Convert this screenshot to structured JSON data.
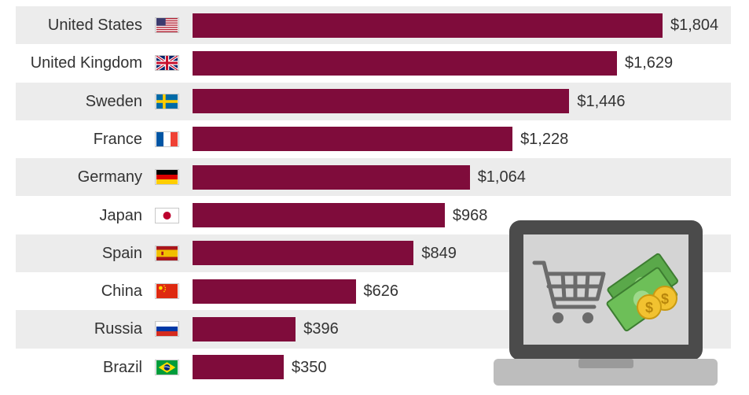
{
  "chart_data": {
    "type": "bar",
    "orientation": "horizontal",
    "categories": [
      "United States",
      "United Kingdom",
      "Sweden",
      "France",
      "Germany",
      "Japan",
      "Spain",
      "China",
      "Russia",
      "Brazil"
    ],
    "values": [
      1804,
      1629,
      1446,
      1228,
      1064,
      968,
      849,
      626,
      396,
      350
    ],
    "value_labels": [
      "$1,804",
      "$1,629",
      "$1,446",
      "$1,228",
      "$1,064",
      "$968",
      "$849",
      "$626",
      "$396",
      "$350"
    ],
    "flags": [
      "flag-us-icon",
      "flag-uk-icon",
      "flag-sweden-icon",
      "flag-france-icon",
      "flag-germany-icon",
      "flag-japan-icon",
      "flag-spain-icon",
      "flag-china-icon",
      "flag-russia-icon",
      "flag-brazil-icon"
    ],
    "xlim": [
      0,
      1804
    ],
    "bar_color": "#7f0c3b",
    "band_color": "#ececec",
    "grid": false,
    "legend": "none",
    "title": "",
    "xlabel": "",
    "ylabel": ""
  },
  "illustration": {
    "icons": [
      "laptop-icon",
      "shopping-cart-icon",
      "banknotes-icon",
      "dollar-coin-icon"
    ],
    "coin_symbol": "$"
  }
}
